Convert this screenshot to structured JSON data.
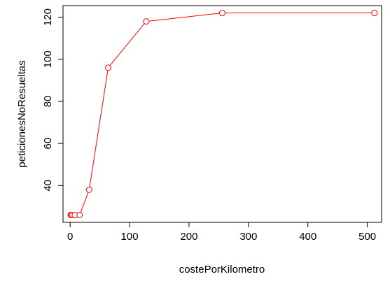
{
  "chart_data": {
    "type": "line",
    "xlabel": "costePorKilometro",
    "ylabel": "peticionesNoResueltas",
    "xlim": [
      -12,
      524
    ],
    "ylim": [
      22.5,
      125.5
    ],
    "x_ticks": [
      0,
      100,
      200,
      300,
      400,
      500
    ],
    "y_ticks": [
      40,
      60,
      80,
      100,
      120
    ],
    "grid": false,
    "series": [
      {
        "color": "#ff0000",
        "marker": "open-circle",
        "x": [
          1,
          2,
          4,
          8,
          16,
          32,
          64,
          128,
          256,
          512
        ],
        "y": [
          26,
          26,
          26,
          26,
          26,
          38,
          96,
          118,
          122,
          122
        ]
      }
    ]
  }
}
